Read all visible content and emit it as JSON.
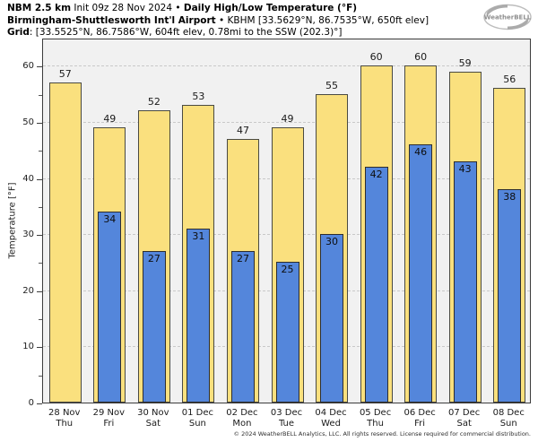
{
  "header": {
    "line1": {
      "model": "NBM 2.5 km",
      "init": " Init 09z 28 Nov 2024 • ",
      "title": "Daily High/Low Temperature (°F)"
    },
    "line2": {
      "station": "Birmingham-Shuttlesworth Int'l Airport",
      "details": " • KBHM [33.5629°N, 86.7535°W, 650ft elev]"
    },
    "line3": {
      "label": "Grid",
      "details": ": [33.5525°N, 86.7586°W, 604ft elev, 0.78mi to the SSW (202.3)°]"
    }
  },
  "logo": {
    "text": "WeatherBELL"
  },
  "chart_data": {
    "type": "bar",
    "title": "Daily High/Low Temperature (°F)",
    "ylabel": "Temperature [°F]",
    "ylim": [
      0,
      65
    ],
    "yticks": [
      0,
      10,
      20,
      30,
      40,
      50,
      60
    ],
    "minor_tick_step": 5,
    "grid": "horizontal-dashed-major",
    "legend": "none",
    "plot_bg": "#f1f1f1",
    "gridline_color": "#c9c9c9",
    "categories": [
      {
        "date": "28 Nov",
        "day": "Thu"
      },
      {
        "date": "29 Nov",
        "day": "Fri"
      },
      {
        "date": "30 Nov",
        "day": "Sat"
      },
      {
        "date": "01 Dec",
        "day": "Sun"
      },
      {
        "date": "02 Dec",
        "day": "Mon"
      },
      {
        "date": "03 Dec",
        "day": "Tue"
      },
      {
        "date": "04 Dec",
        "day": "Wed"
      },
      {
        "date": "05 Dec",
        "day": "Thu"
      },
      {
        "date": "06 Dec",
        "day": "Fri"
      },
      {
        "date": "07 Dec",
        "day": "Sat"
      },
      {
        "date": "08 Dec",
        "day": "Sun"
      }
    ],
    "series": [
      {
        "name": "Daily High",
        "color": "#fae07e",
        "values": [
          57,
          49,
          52,
          53,
          47,
          49,
          55,
          60,
          60,
          59,
          56
        ]
      },
      {
        "name": "Daily Low",
        "color": "#5486db",
        "values": [
          null,
          34,
          27,
          31,
          27,
          25,
          30,
          42,
          46,
          43,
          38
        ]
      }
    ]
  },
  "footer": "© 2024 WeatherBELL Analytics, LLC. All rights reserved. License required for commercial distribution."
}
